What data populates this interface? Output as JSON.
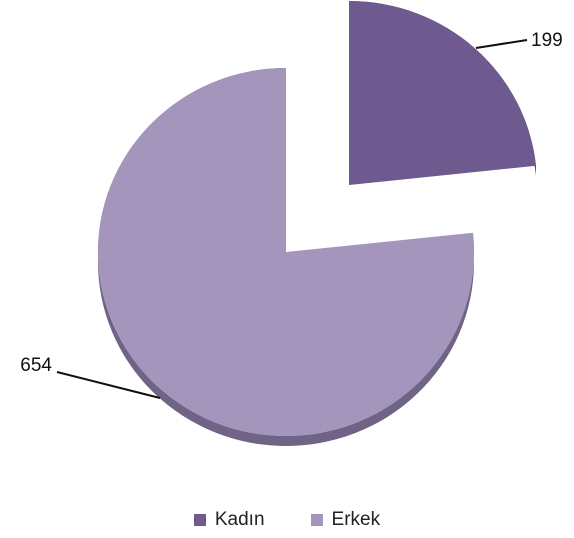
{
  "chart_data": {
    "type": "pie",
    "style": "3d-exploded",
    "categories": [
      "Kadın",
      "Erkek"
    ],
    "values": [
      199,
      654
    ],
    "data_labels": [
      "199",
      "654"
    ],
    "colors": [
      "#6e5a8f",
      "#a395bb"
    ],
    "side_colors": [
      "#55456f",
      "#6f6386"
    ],
    "legend_position": "bottom",
    "exploded_slice": "Kadın"
  }
}
